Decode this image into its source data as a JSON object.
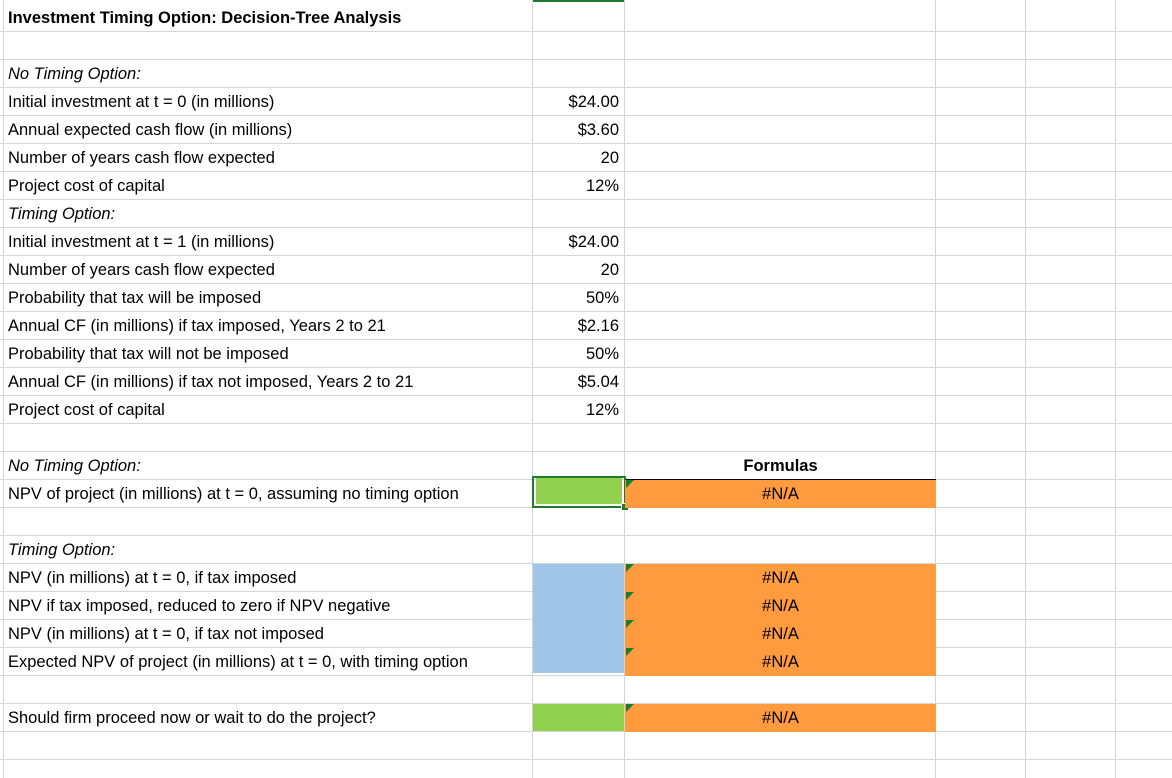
{
  "sheet": {
    "title": "Investment Timing Option:  Decision-Tree Analysis",
    "no_timing_heading": "No Timing Option:",
    "rows": [
      {
        "label": "Initial investment at t = 0 (in millions)",
        "value": "$24.00"
      },
      {
        "label": "Annual expected cash flow (in millions)",
        "value": "$3.60"
      },
      {
        "label": "Number of years cash flow expected",
        "value": "20"
      },
      {
        "label": "Project cost of capital",
        "value": "12%"
      }
    ],
    "timing_heading": "Timing Option:",
    "timing_rows": [
      {
        "label": "Initial investment at t = 1 (in millions)",
        "value": "$24.00"
      },
      {
        "label": "Number of years cash flow expected",
        "value": "20"
      },
      {
        "label": "Probability that tax will be imposed",
        "value": "50%"
      },
      {
        "label": "Annual CF (in millions) if tax imposed, Years 2 to 21",
        "value": "$2.16"
      },
      {
        "label": "Probability that tax will not be imposed",
        "value": "50%"
      },
      {
        "label": "Annual CF (in millions) if tax not imposed, Years 2 to 21",
        "value": "$5.04"
      },
      {
        "label": "Project cost of capital",
        "value": "12%"
      }
    ],
    "results": {
      "no_timing_heading": "No Timing Option:",
      "formulas_header": "Formulas",
      "npv_no_timing_label": "NPV of project (in millions) at t = 0, assuming no timing option",
      "npv_no_timing_formula": "#N/A",
      "timing_heading": "Timing Option:",
      "timing_items": [
        {
          "label": "NPV (in millions) at t = 0, if tax imposed",
          "formula": "#N/A"
        },
        {
          "label": "NPV if tax imposed, reduced to zero if NPV negative",
          "formula": "#N/A"
        },
        {
          "label": "NPV (in millions) at t = 0, if tax not imposed",
          "formula": "#N/A"
        },
        {
          "label": "Expected NPV of project (in millions) at t = 0, with timing option",
          "formula": "#N/A"
        }
      ],
      "decision_label": "Should firm proceed now or wait to do the project?",
      "decision_formula": "#N/A"
    },
    "colors": {
      "input_green": "#92d050",
      "input_blue": "#9fc5e8",
      "formula_orange": "#ff9a3f",
      "selection": "#1e7b2e",
      "grid": "#d4d4d4"
    }
  }
}
